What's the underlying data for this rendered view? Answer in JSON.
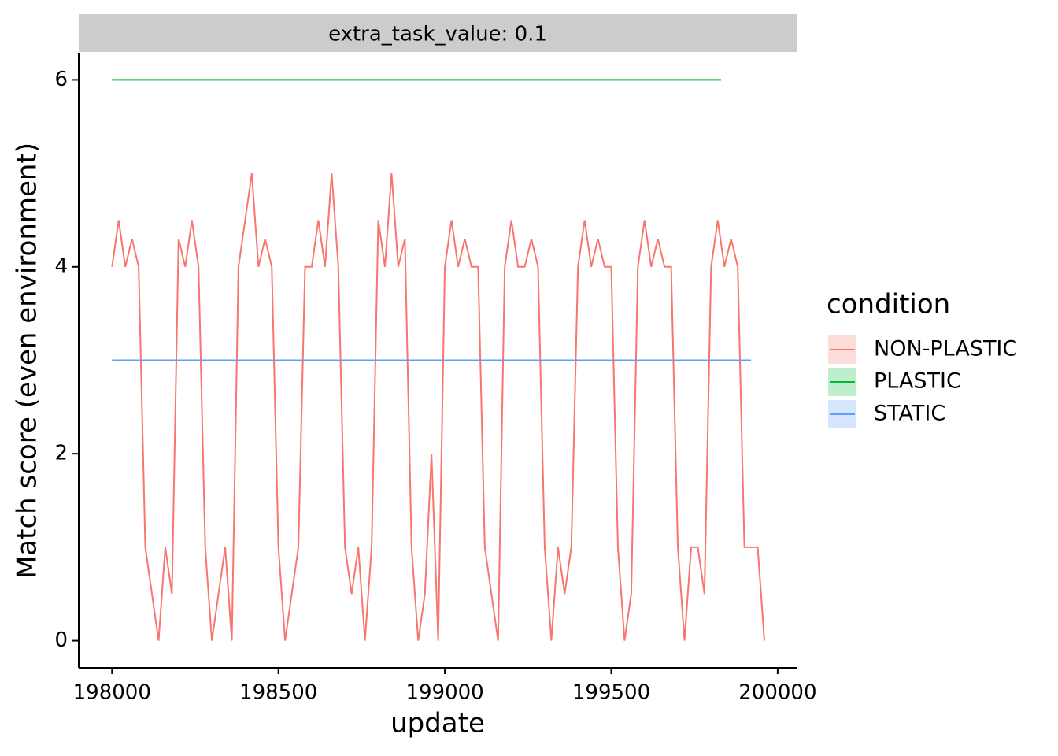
{
  "chart_data": {
    "type": "line",
    "strip_title": "extra_task_value: 0.1",
    "x_label": "update",
    "y_label": "Match score (even environment)",
    "legend_title": "condition",
    "xlim": [
      197900,
      200057
    ],
    "ylim": [
      -0.29,
      6.29
    ],
    "xticks": [
      198000,
      198500,
      199000,
      199500,
      200000
    ],
    "yticks": [
      0,
      2,
      4,
      6
    ],
    "series": [
      {
        "name": "NON-PLASTIC",
        "color": "#F8766D",
        "x": [
          198000,
          198020,
          198040,
          198060,
          198080,
          198100,
          198120,
          198140,
          198160,
          198180,
          198200,
          198220,
          198240,
          198260,
          198280,
          198300,
          198320,
          198340,
          198360,
          198380,
          198400,
          198420,
          198440,
          198460,
          198480,
          198500,
          198520,
          198540,
          198560,
          198580,
          198600,
          198620,
          198640,
          198660,
          198680,
          198700,
          198720,
          198740,
          198760,
          198780,
          198800,
          198820,
          198840,
          198860,
          198880,
          198900,
          198920,
          198940,
          198960,
          198980,
          199000,
          199020,
          199040,
          199060,
          199080,
          199100,
          199120,
          199140,
          199160,
          199180,
          199200,
          199220,
          199240,
          199260,
          199280,
          199300,
          199320,
          199340,
          199360,
          199380,
          199400,
          199420,
          199440,
          199460,
          199480,
          199500,
          199520,
          199540,
          199560,
          199580,
          199600,
          199620,
          199640,
          199660,
          199680,
          199700,
          199720,
          199740,
          199760,
          199780,
          199800,
          199820,
          199840,
          199860,
          199880,
          199900,
          199920,
          199940,
          199960
        ],
        "values": [
          4,
          4.5,
          4,
          4.3,
          4,
          1,
          0.5,
          0,
          1,
          0.5,
          4.3,
          4,
          4.5,
          4,
          1,
          0,
          0.5,
          1,
          0,
          4,
          4.5,
          5,
          4,
          4.3,
          4,
          1,
          0,
          0.5,
          1,
          4,
          4,
          4.5,
          4,
          5,
          4,
          1,
          0.5,
          1,
          0,
          1,
          4.5,
          4,
          5,
          4,
          4.3,
          1,
          0,
          0.5,
          2,
          0,
          4,
          4.5,
          4,
          4.3,
          4,
          4,
          1,
          0.5,
          0,
          4,
          4.5,
          4,
          4,
          4.3,
          4,
          1,
          0,
          1,
          0.5,
          1,
          4,
          4.5,
          4,
          4.3,
          4,
          4,
          1,
          0,
          0.5,
          4,
          4.5,
          4,
          4.3,
          4,
          4,
          1,
          0,
          1,
          1,
          0.5,
          4,
          4.5,
          4,
          4.3,
          4,
          1,
          1,
          1,
          0
        ]
      },
      {
        "name": "PLASTIC",
        "color": "#00BA38",
        "x": [
          198000,
          199830
        ],
        "values": [
          6,
          6
        ]
      },
      {
        "name": "STATIC",
        "color": "#619CFF",
        "x": [
          198000,
          199920
        ],
        "values": [
          3,
          3
        ]
      }
    ]
  }
}
